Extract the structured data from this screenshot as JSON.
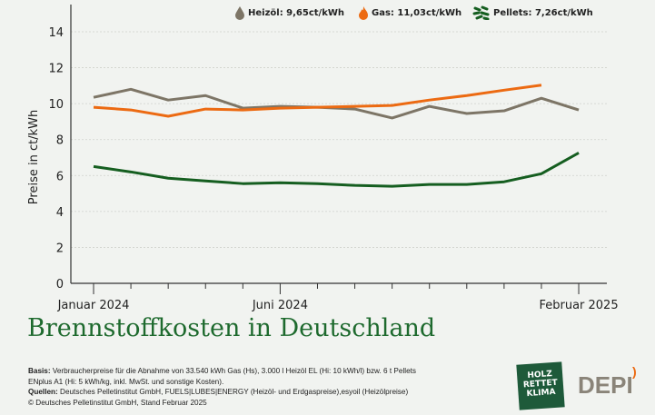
{
  "legend": [
    {
      "icon": "oil-drop-icon",
      "label": "Heizöl: 9,65ct/kWh",
      "color": "#7d7566"
    },
    {
      "icon": "flame-icon",
      "label": "Gas: 11,03ct/kWh",
      "color": "#ec6a12"
    },
    {
      "icon": "pellets-icon",
      "label": "Pellets: 7,26ct/kWh",
      "color": "#155e20"
    }
  ],
  "chart_data": {
    "type": "line",
    "ylabel": "Preise in ct/kWh",
    "ylim": [
      0,
      14
    ],
    "yticks": [
      0,
      2,
      4,
      6,
      8,
      10,
      12,
      14
    ],
    "x": [
      "Jan 2024",
      "Feb 2024",
      "Mär 2024",
      "Apr 2024",
      "Mai 2024",
      "Jun 2024",
      "Jul 2024",
      "Aug 2024",
      "Sep 2024",
      "Okt 2024",
      "Nov 2024",
      "Dez 2024",
      "Jan 2025",
      "Feb 2025"
    ],
    "xtick_labels": [
      {
        "index": 0,
        "label": "Januar 2024"
      },
      {
        "index": 5,
        "label": "Juni 2024"
      },
      {
        "index": 13,
        "label": "Februar 2025"
      }
    ],
    "grid": true,
    "series": [
      {
        "name": "Heizöl",
        "color": "#7d7566",
        "values": [
          10.35,
          10.8,
          10.2,
          10.45,
          9.75,
          9.85,
          9.8,
          9.7,
          9.2,
          9.85,
          9.45,
          9.6,
          10.3,
          9.65
        ]
      },
      {
        "name": "Gas",
        "color": "#ec6a12",
        "values": [
          9.8,
          9.65,
          9.3,
          9.7,
          9.65,
          9.75,
          9.8,
          9.85,
          9.9,
          10.2,
          10.45,
          10.75,
          11.03,
          null
        ]
      },
      {
        "name": "Pellets",
        "color": "#155e20",
        "values": [
          6.5,
          6.2,
          5.85,
          5.7,
          5.55,
          5.6,
          5.55,
          5.45,
          5.4,
          5.5,
          5.5,
          5.65,
          6.1,
          7.26
        ]
      }
    ]
  },
  "title": "Brennstoffkosten in Deutschland",
  "notes": {
    "basis_label": "Basis:",
    "basis_text": " Verbraucherpreise für die Abnahme von 33.540 kWh Gas (Hs), 3.000 l Heizöl EL (Hi: 10 kWh/l) bzw. 6 t Pellets",
    "basis_text2": "ENplus A1 (Hi: 5 kWh/kg, inkl. MwSt. und sonstige Kosten).",
    "sources_label": "Quellen:",
    "sources_text": " Deutsches Pelletinstitut GmbH, FUELS|LUBES|ENERGY (Heizöl- und Erdgaspreise),esyoil (Heizölpreise)",
    "copyright": "© Deutsches Pelletinstitut GmbH, Stand Februar 2025"
  },
  "logos": {
    "holz": "HOLZ RETTET KLIMA",
    "depi": "DEPI"
  }
}
